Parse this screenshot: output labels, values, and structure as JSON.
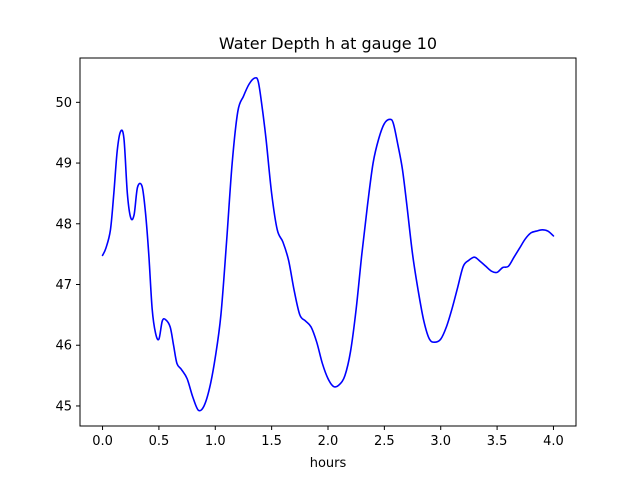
{
  "chart_data": {
    "type": "line",
    "title": "Water Depth h at gauge 10",
    "xlabel": "hours",
    "ylabel": "",
    "xlim": [
      -0.2,
      4.2
    ],
    "ylim": [
      44.67,
      50.73
    ],
    "xticks": [
      0.0,
      0.5,
      1.0,
      1.5,
      2.0,
      2.5,
      3.0,
      3.5,
      4.0
    ],
    "xtick_labels": [
      "0.0",
      "0.5",
      "1.0",
      "1.5",
      "2.0",
      "2.5",
      "3.0",
      "3.5",
      "4.0"
    ],
    "yticks": [
      45,
      46,
      47,
      48,
      49,
      50
    ],
    "ytick_labels": [
      "45",
      "46",
      "47",
      "48",
      "49",
      "50"
    ],
    "grid": false,
    "line_color": "#0000ff",
    "series": [
      {
        "x": [
          0.0,
          0.03,
          0.07,
          0.1,
          0.13,
          0.16,
          0.19,
          0.22,
          0.25,
          0.28,
          0.31,
          0.35,
          0.38,
          0.41,
          0.44,
          0.47,
          0.5,
          0.53,
          0.56,
          0.6,
          0.63,
          0.66,
          0.7,
          0.75,
          0.8,
          0.85,
          0.9,
          0.95,
          1.0,
          1.05,
          1.1,
          1.15,
          1.2,
          1.25,
          1.3,
          1.35,
          1.38,
          1.41,
          1.45,
          1.5,
          1.55,
          1.6,
          1.65,
          1.7,
          1.75,
          1.8,
          1.85,
          1.9,
          1.95,
          2.0,
          2.05,
          2.1,
          2.15,
          2.2,
          2.25,
          2.3,
          2.35,
          2.4,
          2.45,
          2.5,
          2.55,
          2.58,
          2.62,
          2.66,
          2.7,
          2.75,
          2.8,
          2.85,
          2.9,
          2.95,
          3.0,
          3.05,
          3.1,
          3.15,
          3.2,
          3.25,
          3.3,
          3.35,
          3.4,
          3.45,
          3.5,
          3.55,
          3.6,
          3.65,
          3.7,
          3.75,
          3.8,
          3.85,
          3.9,
          3.95,
          4.0
        ],
        "y": [
          47.48,
          47.6,
          47.9,
          48.5,
          49.2,
          49.52,
          49.4,
          48.5,
          48.1,
          48.15,
          48.6,
          48.62,
          48.2,
          47.5,
          46.6,
          46.2,
          46.1,
          46.4,
          46.42,
          46.3,
          46.0,
          45.7,
          45.6,
          45.45,
          45.15,
          44.93,
          45.0,
          45.3,
          45.8,
          46.5,
          47.7,
          49.0,
          49.85,
          50.1,
          50.3,
          50.4,
          50.35,
          50.0,
          49.4,
          48.5,
          47.9,
          47.7,
          47.4,
          46.9,
          46.5,
          46.4,
          46.3,
          46.05,
          45.7,
          45.45,
          45.32,
          45.35,
          45.5,
          45.9,
          46.6,
          47.5,
          48.3,
          49.0,
          49.4,
          49.65,
          49.72,
          49.65,
          49.3,
          48.9,
          48.3,
          47.5,
          46.9,
          46.4,
          46.1,
          46.05,
          46.1,
          46.3,
          46.6,
          46.95,
          47.3,
          47.4,
          47.45,
          47.38,
          47.3,
          47.22,
          47.2,
          47.28,
          47.3,
          47.45,
          47.6,
          47.75,
          47.85,
          47.88,
          47.9,
          47.88,
          47.8
        ]
      }
    ]
  }
}
